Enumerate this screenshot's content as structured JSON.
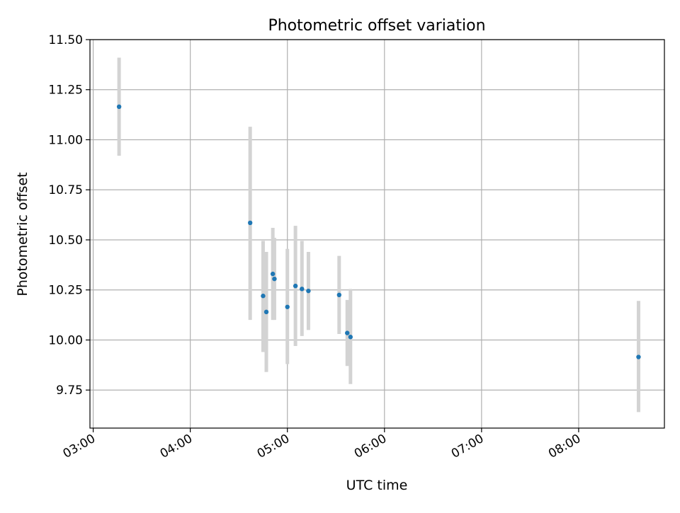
{
  "chart_data": {
    "type": "scatter",
    "title": "Photometric offset variation",
    "xlabel": "UTC time",
    "ylabel": "Photometric offset",
    "xlim": [
      "02:58",
      "08:53"
    ],
    "ylim": [
      9.56,
      11.5
    ],
    "x_ticks": [
      "03:00",
      "04:00",
      "05:00",
      "06:00",
      "07:00",
      "08:00"
    ],
    "y_ticks": [
      "9.75",
      "10.00",
      "10.25",
      "10.50",
      "10.75",
      "11.00",
      "11.25",
      "11.50"
    ],
    "grid": true,
    "legend": "none",
    "series": [
      {
        "x": [
          "03:16",
          "04:37",
          "04:45",
          "04:47",
          "04:51",
          "04:52",
          "05:00",
          "05:05",
          "05:09",
          "05:13",
          "05:32",
          "05:37",
          "05:39",
          "08:37"
        ],
        "y": [
          11.165,
          10.585,
          10.22,
          10.14,
          10.33,
          10.305,
          10.165,
          10.27,
          10.255,
          10.245,
          10.225,
          10.035,
          10.015,
          9.915
        ],
        "error_low": [
          10.92,
          10.1,
          9.94,
          9.84,
          10.1,
          10.1,
          9.88,
          9.97,
          10.02,
          10.05,
          10.03,
          9.87,
          9.78,
          9.64
        ],
        "error_high": [
          11.41,
          11.065,
          10.495,
          10.44,
          10.56,
          10.51,
          10.455,
          10.57,
          10.495,
          10.44,
          10.42,
          10.2,
          10.255,
          10.195
        ],
        "marker_color": "#1f77b4",
        "errorbar_color": "#d3d3d3"
      }
    ]
  }
}
